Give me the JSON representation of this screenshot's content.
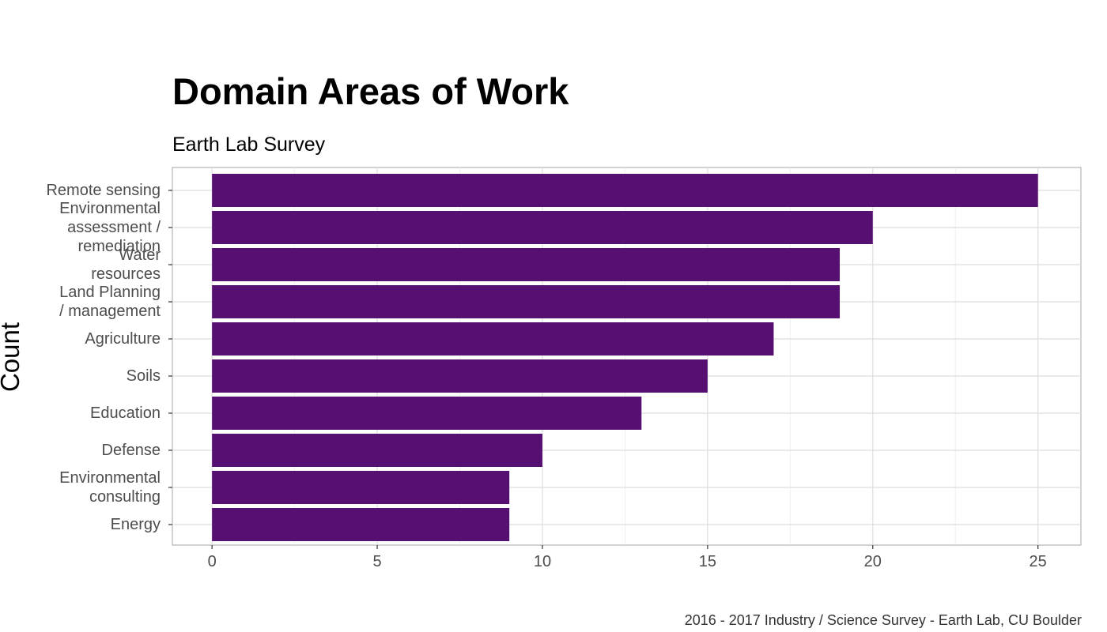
{
  "chart_data": {
    "type": "bar",
    "orientation": "horizontal",
    "title": "Domain Areas of Work",
    "subtitle": "Earth Lab Survey",
    "caption": "2016 - 2017 Industry / Science Survey - Earth Lab, CU Boulder",
    "xlabel": "",
    "ylabel": "Count",
    "categories": [
      [
        "Remote sensing"
      ],
      [
        "Environmental",
        "assessment /",
        "remediation"
      ],
      [
        "Water",
        "resources"
      ],
      [
        "Land Planning",
        "/ management"
      ],
      [
        "Agriculture"
      ],
      [
        "Soils"
      ],
      [
        "Education"
      ],
      [
        "Defense"
      ],
      [
        "Environmental",
        "consulting"
      ],
      [
        "Energy"
      ]
    ],
    "values": [
      25,
      20,
      19,
      19,
      17,
      15,
      13,
      10,
      9,
      9
    ],
    "xlim": [
      -1.2,
      26.3
    ],
    "xticks": [
      0,
      5,
      10,
      15,
      20,
      25
    ],
    "bar_color": "#551072",
    "grid": true,
    "legend": "none"
  }
}
